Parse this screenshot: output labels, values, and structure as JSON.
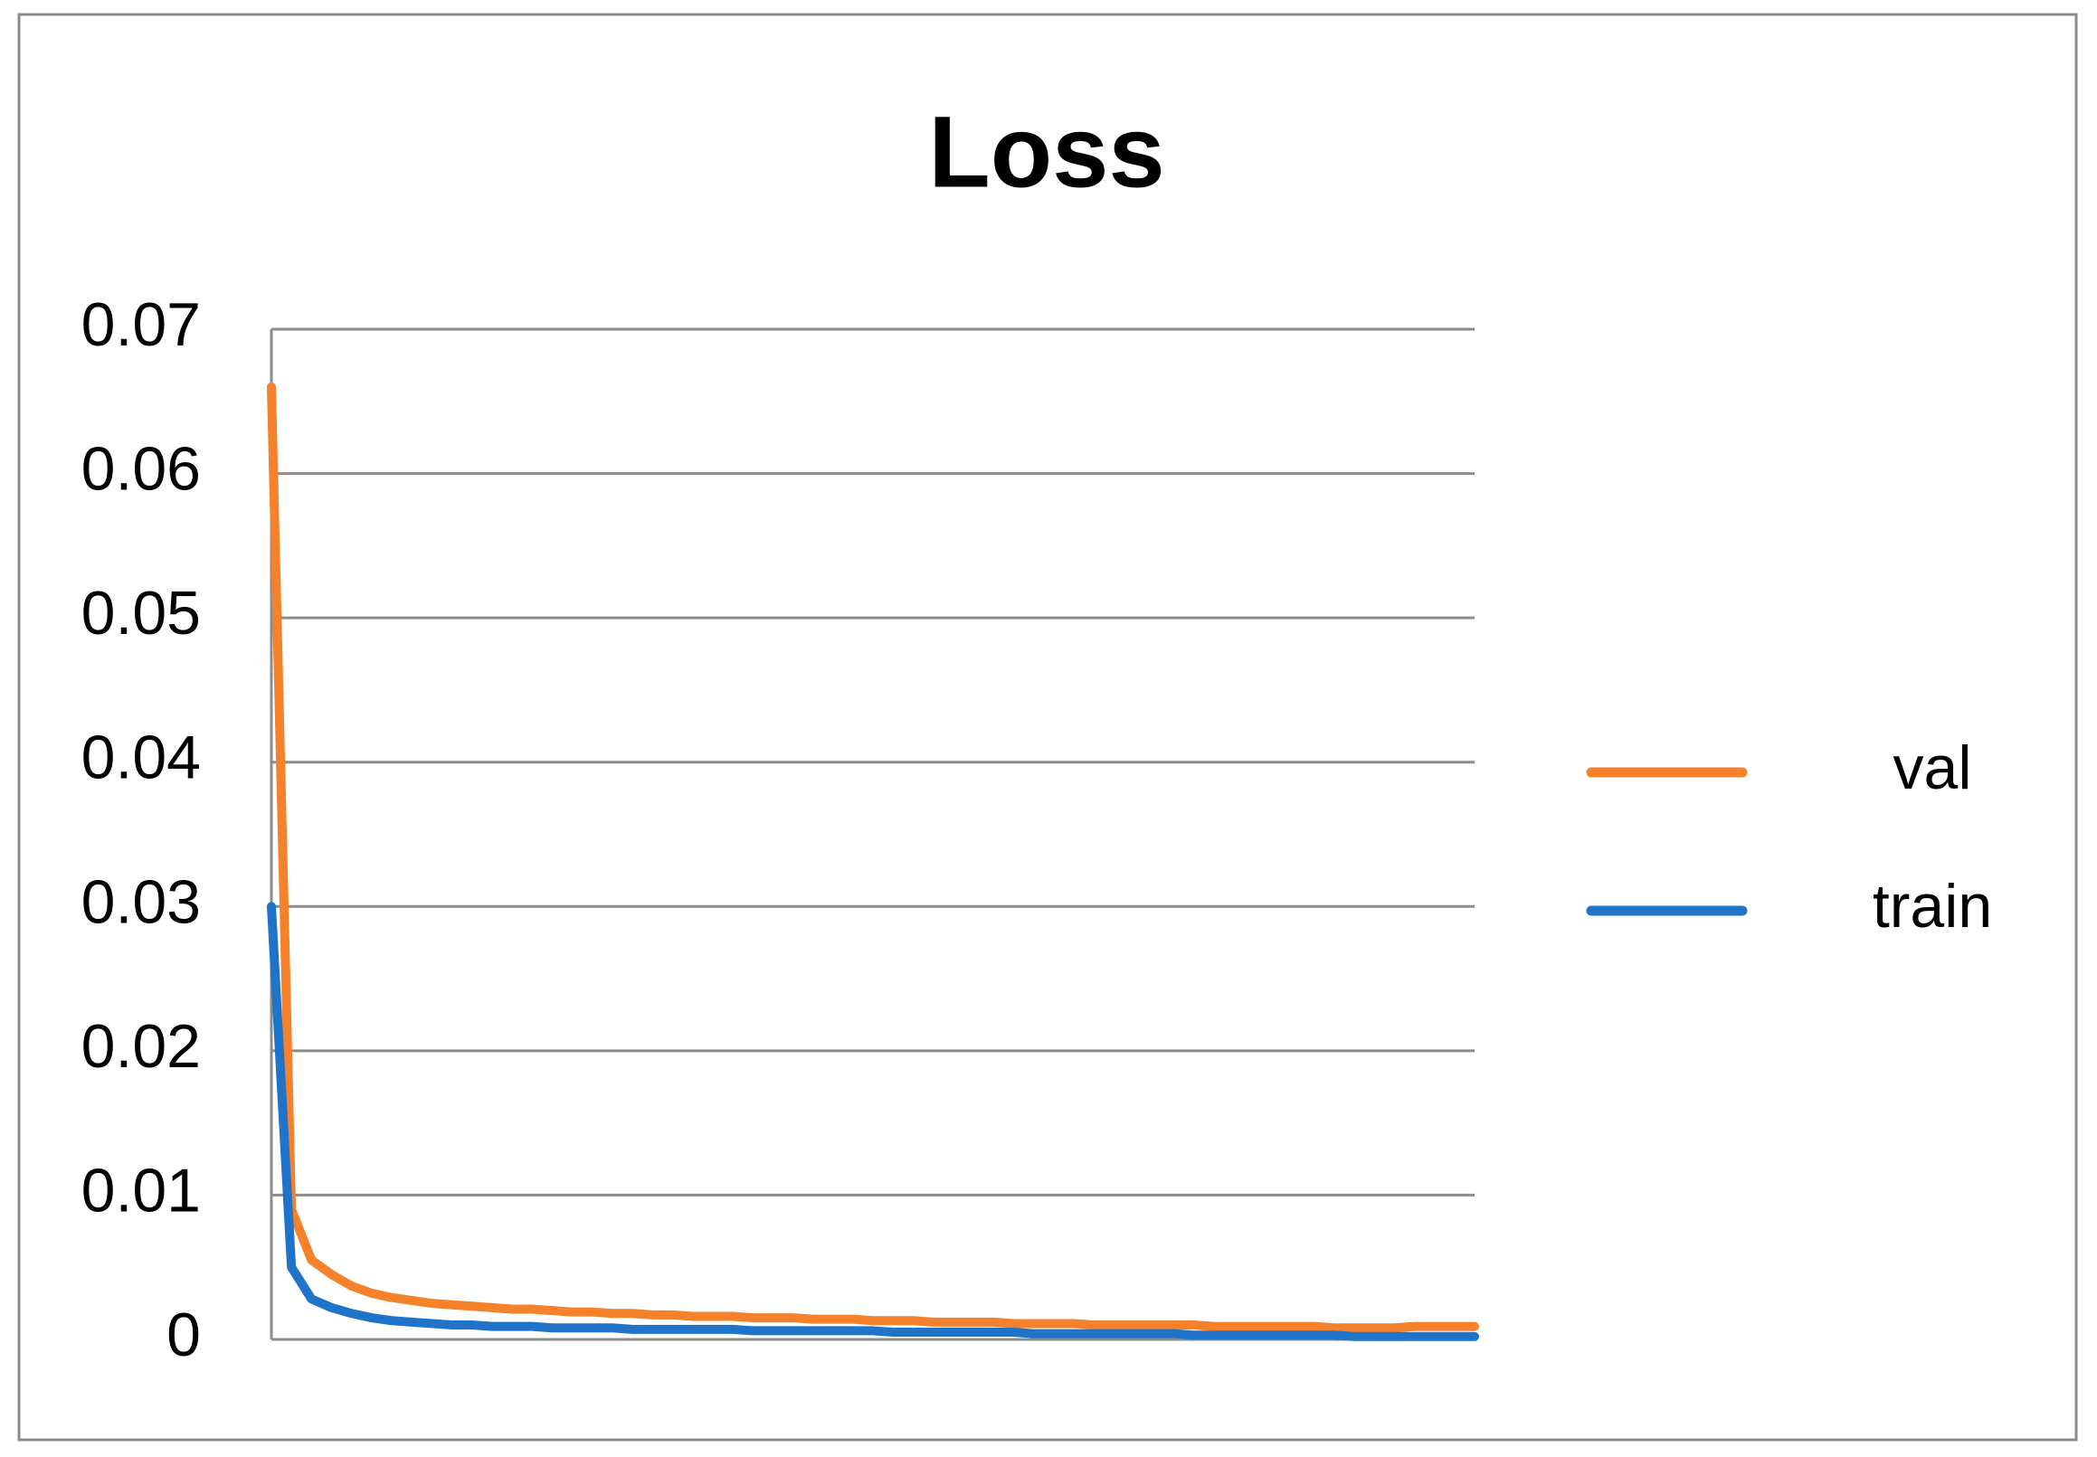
{
  "chart_data": {
    "type": "line",
    "title": "Loss",
    "series": [
      {
        "name": "val",
        "color": "#f5812b",
        "values": [
          0.066,
          0.009,
          0.0055,
          0.0045,
          0.0037,
          0.0032,
          0.0029,
          0.0027,
          0.0025,
          0.0024,
          0.0023,
          0.0022,
          0.0021,
          0.0021,
          0.002,
          0.0019,
          0.0019,
          0.0018,
          0.0018,
          0.0017,
          0.0017,
          0.0016,
          0.0016,
          0.0016,
          0.0015,
          0.0015,
          0.0015,
          0.0014,
          0.0014,
          0.0014,
          0.0013,
          0.0013,
          0.0013,
          0.0012,
          0.0012,
          0.0012,
          0.0012,
          0.0011,
          0.0011,
          0.0011,
          0.0011,
          0.001,
          0.001,
          0.001,
          0.001,
          0.001,
          0.001,
          0.0009,
          0.0009,
          0.0009,
          0.0009,
          0.0009,
          0.0009,
          0.0008,
          0.0008,
          0.0008,
          0.0008,
          0.0009,
          0.0009,
          0.0009,
          0.0009
        ]
      },
      {
        "name": "train",
        "color": "#1f73c9",
        "values": [
          0.03,
          0.005,
          0.0028,
          0.0022,
          0.0018,
          0.0015,
          0.0013,
          0.0012,
          0.0011,
          0.001,
          0.001,
          0.0009,
          0.0009,
          0.0009,
          0.0008,
          0.0008,
          0.0008,
          0.0008,
          0.0007,
          0.0007,
          0.0007,
          0.0007,
          0.0007,
          0.0007,
          0.0006,
          0.0006,
          0.0006,
          0.0006,
          0.0006,
          0.0006,
          0.0006,
          0.0005,
          0.0005,
          0.0005,
          0.0005,
          0.0005,
          0.0005,
          0.0005,
          0.0004,
          0.0004,
          0.0004,
          0.0004,
          0.0004,
          0.0004,
          0.0004,
          0.0004,
          0.0003,
          0.0003,
          0.0003,
          0.0003,
          0.0003,
          0.0003,
          0.0003,
          0.0003,
          0.0002,
          0.0002,
          0.0002,
          0.0002,
          0.0002,
          0.0002,
          0.0002
        ]
      }
    ],
    "ylim": [
      0,
      0.07
    ],
    "yticks": [
      0,
      0.01,
      0.02,
      0.03,
      0.04,
      0.05,
      0.06,
      0.07
    ],
    "grid": true,
    "legend": "right"
  }
}
